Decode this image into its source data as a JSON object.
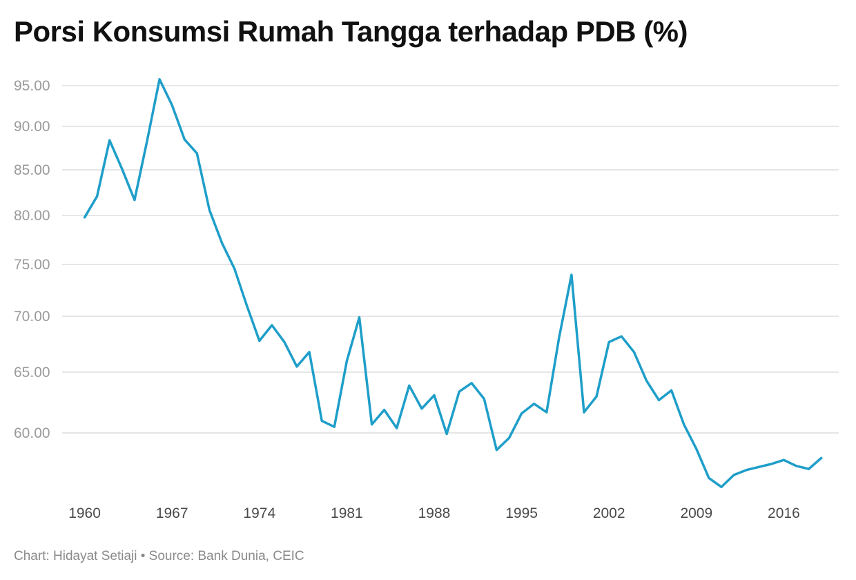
{
  "title": "Porsi Konsumsi Rumah Tangga terhadap PDB (%)",
  "footer": "Chart: Hidayat Setiaji • Source: Bank Dunia, CEIC",
  "colors": {
    "line": "#1e9ec9",
    "grid": "#dddddd"
  },
  "chart_data": {
    "type": "line",
    "title": "Porsi Konsumsi Rumah Tangga terhadap PDB (%)",
    "xlabel": "",
    "ylabel": "",
    "y_ticks": [
      60,
      65,
      70,
      75,
      80,
      85,
      90,
      95
    ],
    "y_tick_labels": [
      "60.00",
      "65.00",
      "70.00",
      "75.00",
      "80.00",
      "85.00",
      "90.00",
      "95.00"
    ],
    "x_ticks": [
      1960,
      1967,
      1974,
      1981,
      1988,
      1995,
      2002,
      2009,
      2016
    ],
    "x_tick_labels": [
      "1960",
      "1967",
      "1974",
      "1981",
      "1988",
      "1995",
      "2002",
      "2009",
      "2016"
    ],
    "grid": true,
    "series": [
      {
        "x": [
          1960,
          1961,
          1962,
          1963,
          1964,
          1965,
          1966,
          1967,
          1968,
          1969,
          1970,
          1971,
          1972,
          1973,
          1974,
          1975,
          1976,
          1977,
          1978,
          1979,
          1980,
          1981,
          1982,
          1983,
          1984,
          1985,
          1986,
          1987,
          1988,
          1989,
          1990,
          1991,
          1992,
          1993,
          1994,
          1995,
          1996,
          1997,
          1998,
          1999,
          2000,
          2001,
          2002,
          2003,
          2004,
          2005,
          2006,
          2007,
          2008,
          2009,
          2010,
          2011,
          2012,
          2013,
          2014,
          2015,
          2016,
          2017,
          2018,
          2019
        ],
        "values": [
          79.8,
          82.1,
          88.4,
          85.1,
          81.7,
          88.3,
          95.8,
          92.6,
          88.5,
          86.9,
          80.6,
          77.2,
          74.6,
          71.0,
          67.8,
          69.2,
          67.7,
          65.5,
          66.8,
          61.0,
          60.5,
          66.0,
          69.9,
          60.7,
          61.9,
          60.4,
          63.9,
          62.0,
          63.1,
          59.9,
          63.4,
          64.1,
          62.8,
          58.3,
          59.5,
          61.6,
          62.4,
          61.7,
          68.1,
          74.0,
          61.7,
          63.0,
          67.7,
          68.2,
          66.8,
          64.3,
          62.7,
          63.5,
          60.7,
          58.4,
          55.5,
          54.6,
          55.8,
          56.3,
          56.6,
          56.9,
          57.3,
          56.7,
          56.4,
          57.5
        ]
      }
    ]
  }
}
